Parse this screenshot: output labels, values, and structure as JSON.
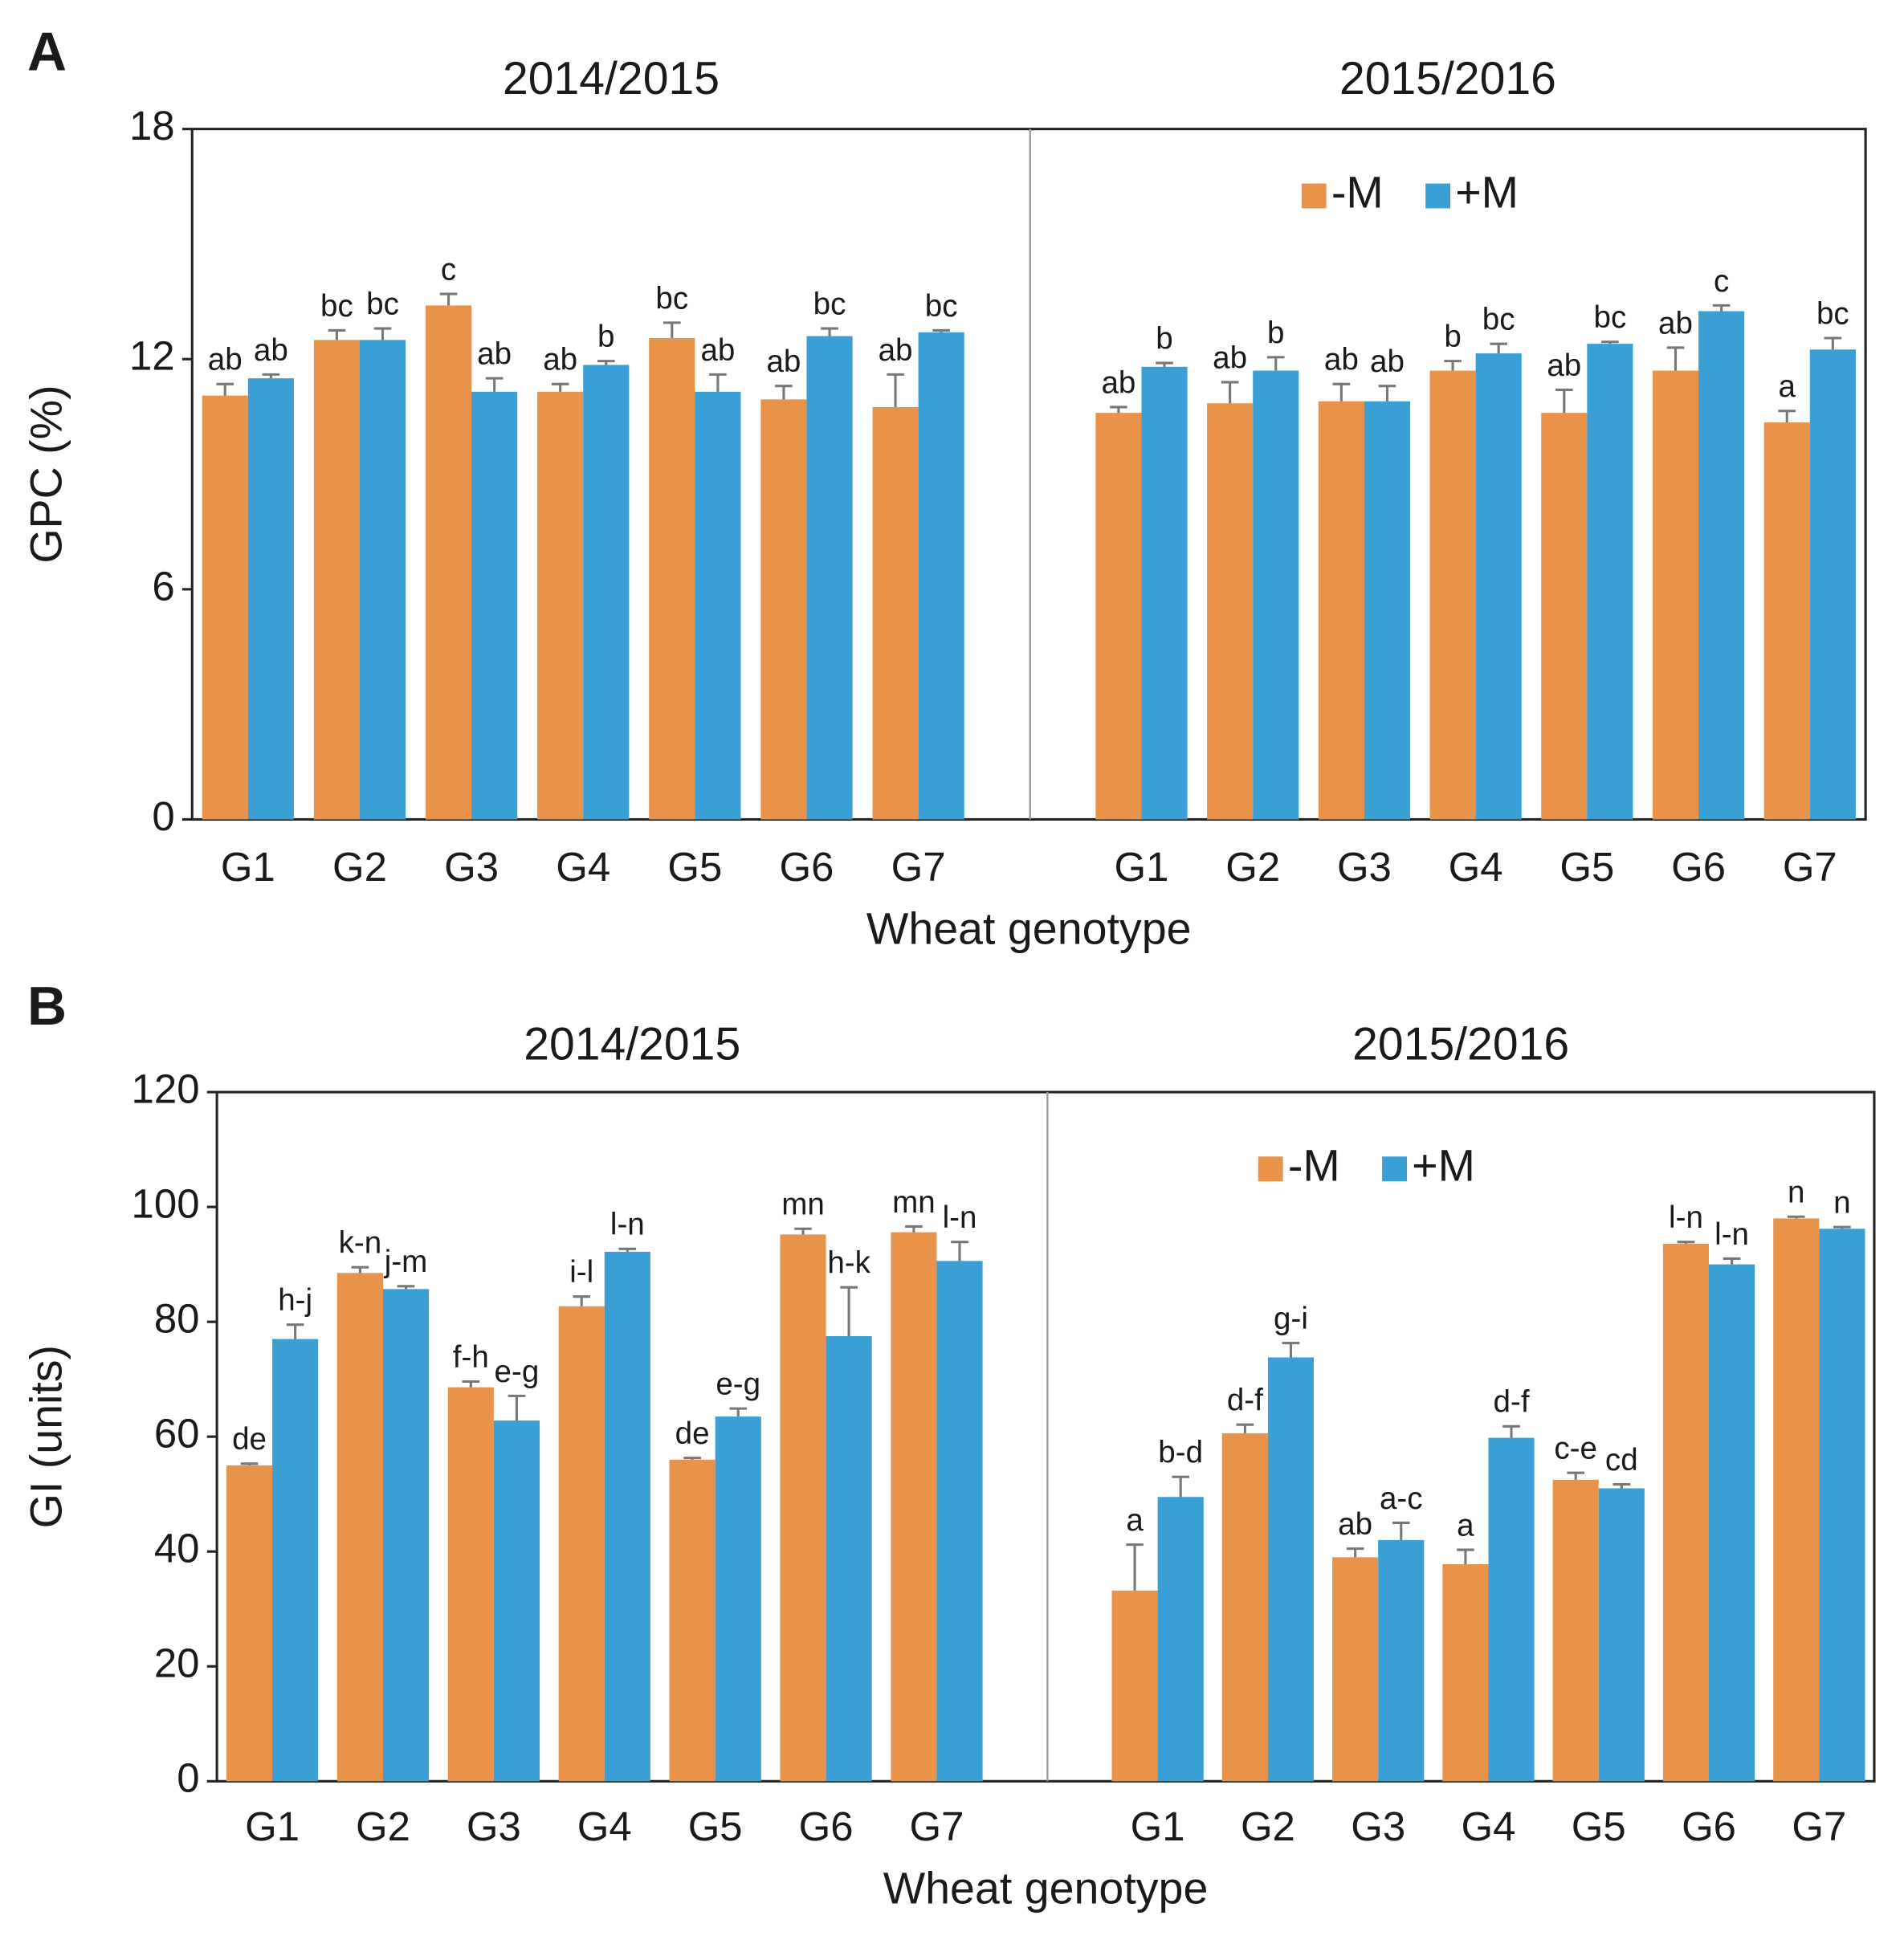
{
  "chart_data": [
    {
      "type": "bar",
      "panel": "A",
      "ylabel": "GPC (%)",
      "xlabel": "Wheat genotype",
      "ylim": [
        0,
        18
      ],
      "yticks": [
        0,
        6,
        12,
        18
      ],
      "legend": [
        {
          "name": "-M",
          "color": "#e8924a"
        },
        {
          "name": "+M",
          "color": "#3a9fd4"
        }
      ],
      "groups": [
        {
          "title": "2014/2015",
          "categories": [
            "G1",
            "G2",
            "G3",
            "G4",
            "G5",
            "G6",
            "G7"
          ],
          "series": [
            {
              "values": [
                11.05,
                12.5,
                13.4,
                11.15,
                12.55,
                10.95,
                10.75
              ],
              "errors": [
                0.3,
                0.25,
                0.3,
                0.2,
                0.4,
                0.35,
                0.85
              ],
              "letters": [
                "ab",
                "bc",
                "c",
                "ab",
                "bc",
                "ab",
                "ab"
              ]
            },
            {
              "values": [
                11.5,
                12.5,
                11.15,
                11.85,
                11.15,
                12.6,
                12.7
              ],
              "errors": [
                0.1,
                0.3,
                0.35,
                0.1,
                0.45,
                0.2,
                0.05
              ],
              "letters": [
                "ab",
                "bc",
                "ab",
                "b",
                "ab",
                "bc",
                "bc"
              ]
            }
          ]
        },
        {
          "title": "2015/2016",
          "categories": [
            "G1",
            "G2",
            "G3",
            "G4",
            "G5",
            "G6",
            "G7"
          ],
          "series": [
            {
              "values": [
                10.6,
                10.85,
                10.9,
                11.7,
                10.6,
                11.7,
                10.35
              ],
              "errors": [
                0.15,
                0.55,
                0.45,
                0.25,
                0.6,
                0.6,
                0.3
              ],
              "letters": [
                "ab",
                "ab",
                "ab",
                "b",
                "ab",
                "ab",
                "a"
              ]
            },
            {
              "values": [
                11.8,
                11.7,
                10.9,
                12.15,
                12.4,
                13.25,
                12.25
              ],
              "errors": [
                0.1,
                0.35,
                0.4,
                0.25,
                0.05,
                0.15,
                0.3
              ],
              "letters": [
                "b",
                "b",
                "ab",
                "bc",
                "bc",
                "c",
                "bc"
              ]
            }
          ]
        }
      ]
    },
    {
      "type": "bar",
      "panel": "B",
      "ylabel": "GI (units)",
      "xlabel": "Wheat genotype",
      "ylim": [
        0,
        120
      ],
      "yticks": [
        0,
        20,
        40,
        60,
        80,
        100,
        120
      ],
      "legend": [
        {
          "name": "-M",
          "color": "#e8924a"
        },
        {
          "name": "+M",
          "color": "#3a9fd4"
        }
      ],
      "groups": [
        {
          "title": "2014/2015",
          "categories": [
            "G1",
            "G2",
            "G3",
            "G4",
            "G5",
            "G6",
            "G7"
          ],
          "series": [
            {
              "values": [
                55,
                88.5,
                68.6,
                82.7,
                56,
                95.2,
                95.6
              ],
              "errors": [
                0.3,
                1,
                1,
                1.7,
                0.3,
                1,
                1
              ],
              "letters": [
                "de",
                "k-n",
                "f-h",
                "i-l",
                "de",
                "mn",
                "mn"
              ]
            },
            {
              "values": [
                77,
                85.7,
                62.8,
                92.2,
                63.5,
                77.5,
                90.6
              ],
              "errors": [
                2.5,
                0.5,
                4.3,
                0.5,
                1.4,
                8.5,
                3.3
              ],
              "letters": [
                "h-j",
                "j-m",
                "e-g",
                "l-n",
                "e-g",
                "h-k",
                "l-n"
              ]
            }
          ]
        },
        {
          "title": "2015/2016",
          "categories": [
            "G1",
            "G2",
            "G3",
            "G4",
            "G5",
            "G6",
            "G7"
          ],
          "series": [
            {
              "values": [
                33.2,
                60.6,
                39,
                37.8,
                52.5,
                93.6,
                98
              ],
              "errors": [
                8,
                1.5,
                1.5,
                2.5,
                1.2,
                0.3,
                0.3
              ],
              "letters": [
                "a",
                "d-f",
                "ab",
                "a",
                "c-e",
                "l-n",
                "n"
              ]
            },
            {
              "values": [
                49.5,
                73.8,
                42,
                59.8,
                51,
                90,
                96.2
              ],
              "errors": [
                3.5,
                2.5,
                3,
                2,
                0.7,
                1,
                0.3
              ],
              "letters": [
                "b-d",
                "g-i",
                "a-c",
                "d-f",
                "cd",
                "l-n",
                "n"
              ]
            }
          ]
        }
      ]
    }
  ]
}
